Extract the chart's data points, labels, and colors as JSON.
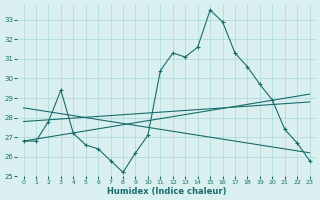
{
  "xlabel": "Humidex (Indice chaleur)",
  "x_values": [
    0,
    1,
    2,
    3,
    4,
    5,
    6,
    7,
    8,
    9,
    10,
    11,
    12,
    13,
    14,
    15,
    16,
    17,
    18,
    19,
    20,
    21,
    22,
    23
  ],
  "line1": [
    26.8,
    26.8,
    27.8,
    29.4,
    27.2,
    26.6,
    26.4,
    25.8,
    25.2,
    26.2,
    27.1,
    30.4,
    31.3,
    31.1,
    31.6,
    33.5,
    32.9,
    31.3,
    30.6,
    29.7,
    28.9,
    27.4,
    26.7,
    25.8
  ],
  "trend1_x": [
    0,
    23
  ],
  "trend1_y": [
    26.8,
    29.2
  ],
  "trend2_x": [
    0,
    23
  ],
  "trend2_y": [
    28.5,
    26.2
  ],
  "trend3_x": [
    0,
    23
  ],
  "trend3_y": [
    27.8,
    28.8
  ],
  "ylim": [
    25,
    33.8
  ],
  "yticks": [
    25,
    26,
    27,
    28,
    29,
    30,
    31,
    32,
    33
  ],
  "xlim": [
    -0.5,
    23.5
  ],
  "line_color": "#1a6b6b",
  "bg_color": "#daf0f0",
  "grid_color": "#aad8d8"
}
